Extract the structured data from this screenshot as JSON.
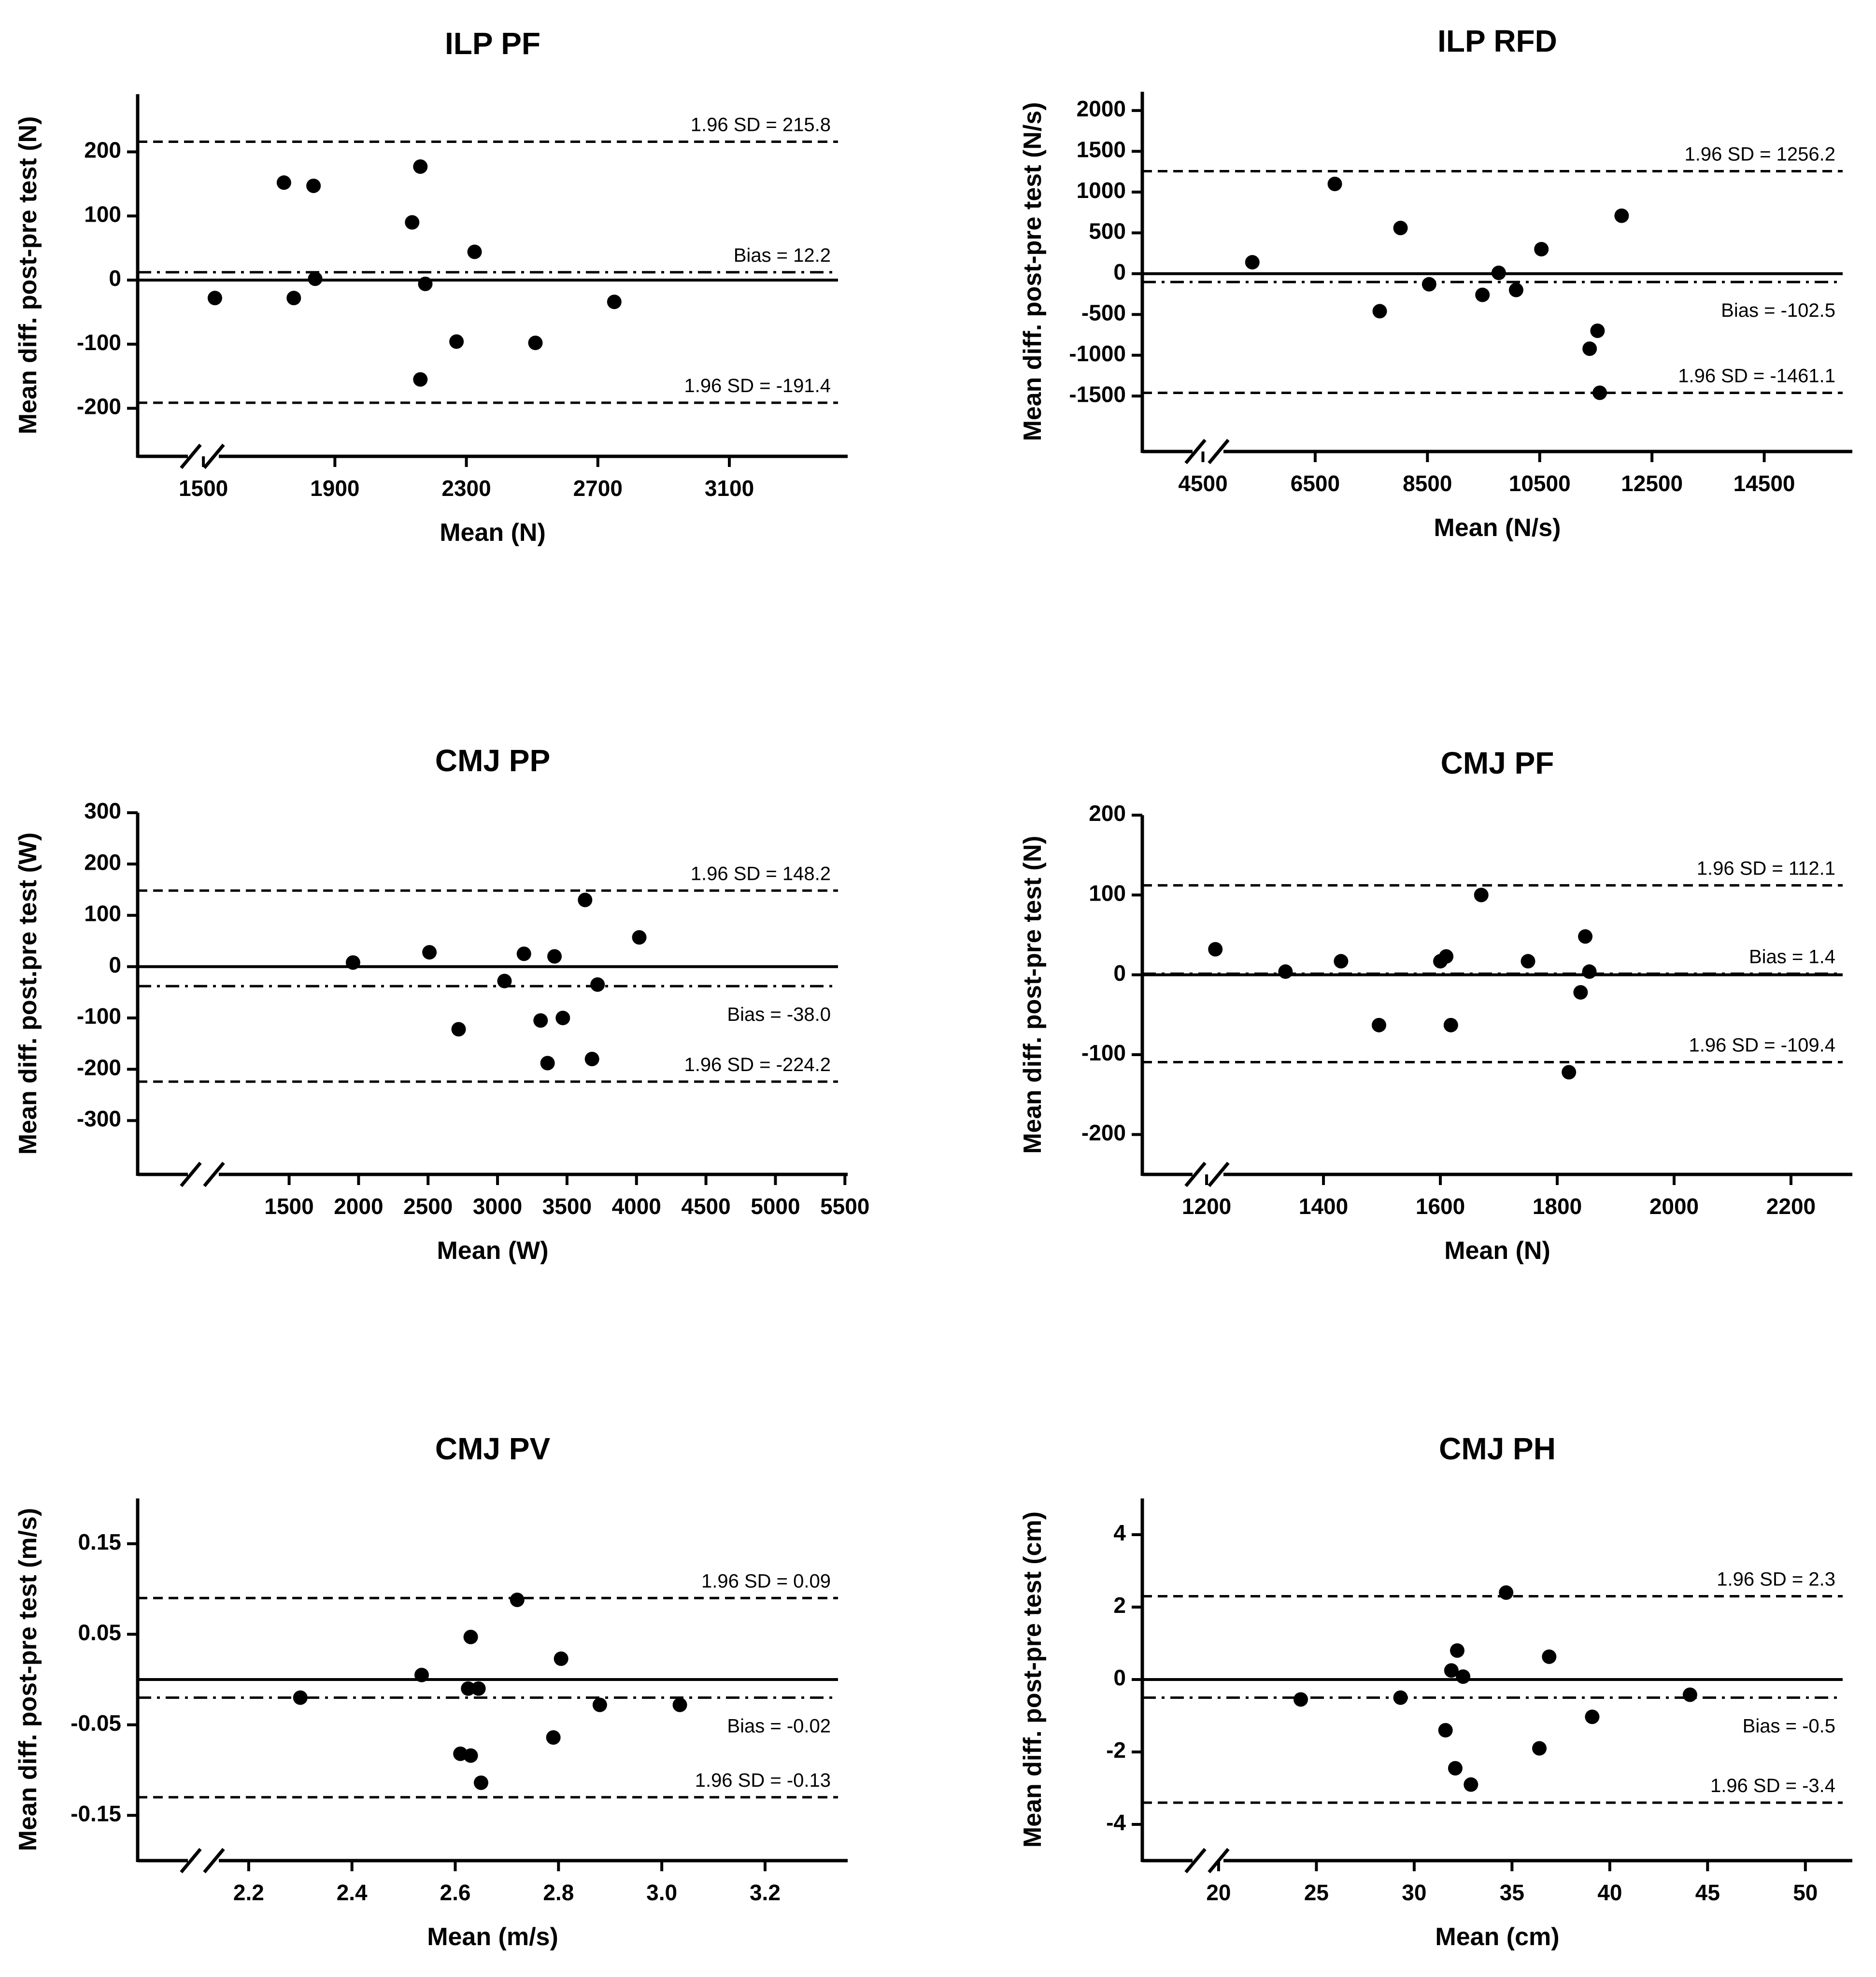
{
  "chart_data": [
    {
      "type": "scatter",
      "title": "ILP PF",
      "xlabel": "Mean (N)",
      "ylabel": "Mean diff. post-pre test (N)",
      "xlim": [
        1300,
        3460
      ],
      "ylim": [
        -275,
        290
      ],
      "xticks": [
        1500,
        1900,
        2300,
        2700,
        3100
      ],
      "yticks": [
        -200,
        -100,
        0,
        100,
        200
      ],
      "axis_break": true,
      "points": [
        [
          1535,
          -28
        ],
        [
          1745,
          152
        ],
        [
          1775,
          -28
        ],
        [
          1835,
          147
        ],
        [
          1840,
          2
        ],
        [
          2135,
          90
        ],
        [
          2160,
          177
        ],
        [
          2160,
          -155
        ],
        [
          2175,
          -6
        ],
        [
          2270,
          -96
        ],
        [
          2325,
          44
        ],
        [
          2510,
          -98
        ],
        [
          2750,
          -34
        ]
      ],
      "zero_line": 0,
      "bias": 12.2,
      "upper_loa": 215.8,
      "lower_loa": -191.4,
      "bias_label": "Bias = 12.2",
      "upper_label": "1.96 SD = 215.8",
      "lower_label": "1.96 SD = -191.4",
      "bias_label_pos": "above"
    },
    {
      "type": "scatter",
      "title": "ILP RFD",
      "xlabel": "Mean (N/s)",
      "ylabel": "Mean diff. post-pre test (N/s)",
      "xlim": [
        3420,
        16070
      ],
      "ylim": [
        -2180,
        2230
      ],
      "xticks": [
        4500,
        6500,
        8500,
        10500,
        12500,
        14500
      ],
      "yticks": [
        -1500,
        -1000,
        -500,
        0,
        500,
        1000,
        1500,
        2000
      ],
      "axis_break": true,
      "points": [
        [
          5380,
          140
        ],
        [
          6850,
          1100
        ],
        [
          7650,
          -460
        ],
        [
          8020,
          560
        ],
        [
          8530,
          -130
        ],
        [
          9480,
          -260
        ],
        [
          9770,
          10
        ],
        [
          10080,
          -200
        ],
        [
          10530,
          300
        ],
        [
          11390,
          -920
        ],
        [
          11530,
          -700
        ],
        [
          11570,
          -1460
        ],
        [
          11960,
          710
        ]
      ],
      "zero_line": 0,
      "bias": -102.5,
      "upper_loa": 1256.2,
      "lower_loa": -1461.1,
      "bias_label": "Bias = -102.5",
      "upper_label": "1.96 SD = 1256.2",
      "lower_label": "1.96 SD = -1461.1",
      "bias_label_pos": "below"
    },
    {
      "type": "scatter",
      "title": "CMJ PP",
      "xlabel": "Mean (W)",
      "ylabel": "Mean diff. post.pre test (W)",
      "xlim": [
        410,
        5520
      ],
      "ylim": [
        -405,
        300
      ],
      "xticks": [
        1500,
        2000,
        2500,
        3000,
        3500,
        4000,
        4500,
        5000,
        5500
      ],
      "yticks": [
        -300,
        -200,
        -100,
        0,
        100,
        200,
        300
      ],
      "axis_break": true,
      "points": [
        [
          1960,
          8
        ],
        [
          2510,
          28
        ],
        [
          2720,
          -122
        ],
        [
          3050,
          -28
        ],
        [
          3190,
          25
        ],
        [
          3310,
          -105
        ],
        [
          3360,
          -188
        ],
        [
          3410,
          20
        ],
        [
          3470,
          -100
        ],
        [
          3630,
          130
        ],
        [
          3680,
          -180
        ],
        [
          3720,
          -35
        ],
        [
          4020,
          57
        ]
      ],
      "zero_line": 0,
      "bias": -38.0,
      "upper_loa": 148.2,
      "lower_loa": -224.2,
      "bias_label": "Bias = -38.0",
      "upper_label": "1.96 SD = 148.2",
      "lower_label": "1.96 SD = -224.2",
      "bias_label_pos": "below"
    },
    {
      "type": "scatter",
      "title": "CMJ PF",
      "xlabel": "Mean (N)",
      "ylabel": "Mean diff. post-pre test (N)",
      "xlim": [
        1090,
        2305
      ],
      "ylim": [
        -250,
        200
      ],
      "xticks": [
        1200,
        1400,
        1600,
        1800,
        2000,
        2200
      ],
      "yticks": [
        -200,
        -100,
        0,
        100,
        200
      ],
      "axis_break": true,
      "points": [
        [
          1215,
          32
        ],
        [
          1335,
          4
        ],
        [
          1430,
          17
        ],
        [
          1495,
          -63
        ],
        [
          1600,
          17
        ],
        [
          1610,
          23
        ],
        [
          1618,
          -63
        ],
        [
          1670,
          100
        ],
        [
          1750,
          17
        ],
        [
          1820,
          -122
        ],
        [
          1840,
          -22
        ],
        [
          1848,
          48
        ],
        [
          1855,
          4
        ]
      ],
      "zero_line": 0,
      "bias": 1.4,
      "upper_loa": 112.1,
      "lower_loa": -109.4,
      "bias_label": "Bias = 1.4",
      "upper_label": "1.96 SD = 112.1",
      "lower_label": "1.96 SD = -109.4",
      "bias_label_pos": "above"
    },
    {
      "type": "scatter",
      "title": "CMJ PV",
      "xlabel": "Mean (m/s)",
      "ylabel": "Mean diff. post-pre test (m/s)",
      "xlim": [
        1.985,
        3.36
      ],
      "ylim": [
        -0.2,
        0.2
      ],
      "xticks": [
        2.2,
        2.4,
        2.6,
        2.8,
        3.0,
        3.2
      ],
      "xtick_labels": [
        "2.2",
        "2.4",
        "2.6",
        "2.8",
        "3.0",
        "3.2"
      ],
      "yticks": [
        -0.15,
        -0.05,
        0.05,
        0.15
      ],
      "ytick_labels": [
        "-0.15",
        "-0.05",
        "0.05",
        "0.15"
      ],
      "axis_break": true,
      "points": [
        [
          2.3,
          -0.02
        ],
        [
          2.535,
          0.005
        ],
        [
          2.61,
          -0.082
        ],
        [
          2.625,
          -0.01
        ],
        [
          2.63,
          0.047
        ],
        [
          2.63,
          -0.084
        ],
        [
          2.645,
          -0.01
        ],
        [
          2.65,
          -0.114
        ],
        [
          2.72,
          0.088
        ],
        [
          2.79,
          -0.064
        ],
        [
          2.805,
          0.023
        ],
        [
          2.88,
          -0.028
        ],
        [
          3.035,
          -0.028
        ]
      ],
      "zero_line": 0,
      "bias": -0.02,
      "upper_loa": 0.09,
      "lower_loa": -0.13,
      "bias_label": "Bias = -0.02",
      "upper_label": "1.96 SD = 0.09",
      "lower_label": "1.96 SD = -0.13",
      "bias_label_pos": "below"
    },
    {
      "type": "scatter",
      "title": "CMJ PH",
      "xlabel": "Mean (cm)",
      "ylabel": "Mean diff. post-pre test (cm)",
      "xlim": [
        16.1,
        52.4
      ],
      "ylim": [
        -5,
        5
      ],
      "xticks": [
        20,
        25,
        30,
        35,
        40,
        45,
        50
      ],
      "yticks": [
        -4,
        -2,
        0,
        2,
        4
      ],
      "axis_break": true,
      "points": [
        [
          24.2,
          -0.55
        ],
        [
          29.3,
          -0.5
        ],
        [
          31.6,
          -1.4
        ],
        [
          31.9,
          0.25
        ],
        [
          32.1,
          -2.45
        ],
        [
          32.2,
          0.8
        ],
        [
          32.5,
          0.08
        ],
        [
          32.9,
          -2.9
        ],
        [
          34.7,
          2.4
        ],
        [
          36.4,
          -1.9
        ],
        [
          36.9,
          0.63
        ],
        [
          39.1,
          -1.03
        ],
        [
          44.1,
          -0.42
        ]
      ],
      "zero_line": 0,
      "bias": -0.5,
      "upper_loa": 2.3,
      "lower_loa": -3.4,
      "bias_label": "Bias = -0.5",
      "upper_label": "1.96 SD = 2.3",
      "lower_label": "1.96 SD = -3.4",
      "bias_label_pos": "below"
    }
  ]
}
